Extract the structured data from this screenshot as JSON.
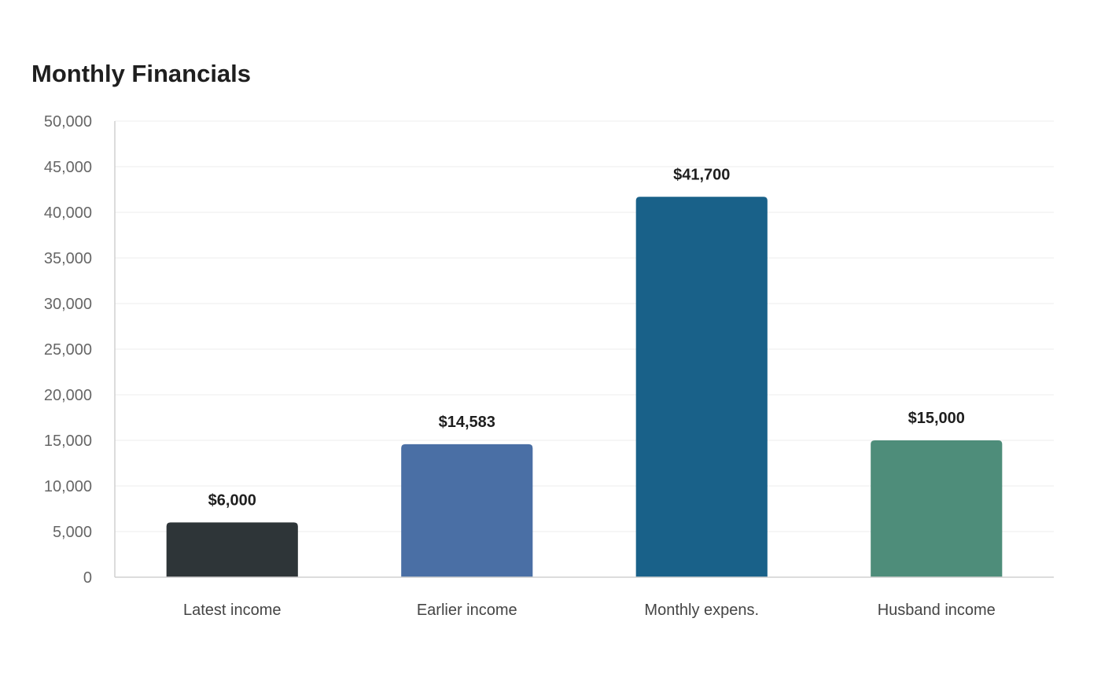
{
  "chart_data": {
    "type": "bar",
    "title": "Monthly Financials",
    "xlabel": "",
    "ylabel": "",
    "categories": [
      "Latest income",
      "Earlier income",
      "Monthly expens.",
      "Husband income"
    ],
    "values": [
      6000,
      14583,
      41700,
      15000
    ],
    "data_labels": [
      "$6,000",
      "$14,583",
      "$41,700",
      "$15,000"
    ],
    "colors": [
      "#2e3538",
      "#4a6fa5",
      "#196189",
      "#4e8d7a"
    ],
    "ylim": [
      0,
      50000
    ],
    "yticks": [
      0,
      5000,
      10000,
      15000,
      20000,
      25000,
      30000,
      35000,
      40000,
      45000,
      50000
    ],
    "ytick_labels": [
      "0",
      "5,000",
      "10,000",
      "15,000",
      "20,000",
      "25,000",
      "30,000",
      "35,000",
      "40,000",
      "45,000",
      "50,000"
    ],
    "grid": true,
    "legend": "none"
  }
}
